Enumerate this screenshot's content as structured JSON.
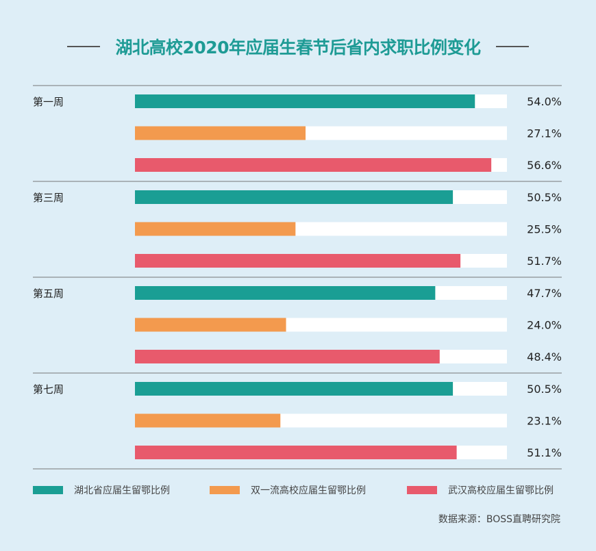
{
  "title": "湖北高校2020年应届生春节后省内求职比例变化",
  "colors": {
    "background": "#deeef7",
    "title": "#1e9b95",
    "track": "#ffffff",
    "series": [
      "#1a9e94",
      "#f39a4e",
      "#e85a6c"
    ]
  },
  "chart_data": {
    "type": "bar",
    "orientation": "horizontal",
    "title": "湖北高校2020年应届生春节后省内求职比例变化",
    "categories": [
      "第一周",
      "第三周",
      "第五周",
      "第七周"
    ],
    "series": [
      {
        "name": "湖北省应届生留鄂比例",
        "values": [
          54.0,
          50.5,
          47.7,
          50.5
        ]
      },
      {
        "name": "双一流高校应届生留鄂比例",
        "values": [
          27.1,
          25.5,
          24.0,
          23.1
        ]
      },
      {
        "name": "武汉高校应届生留鄂比例",
        "values": [
          56.6,
          51.7,
          48.4,
          51.1
        ]
      }
    ],
    "unit": "%",
    "legend": "bottom",
    "grid": false
  },
  "source": "数据来源：BOSS直聘研究院"
}
